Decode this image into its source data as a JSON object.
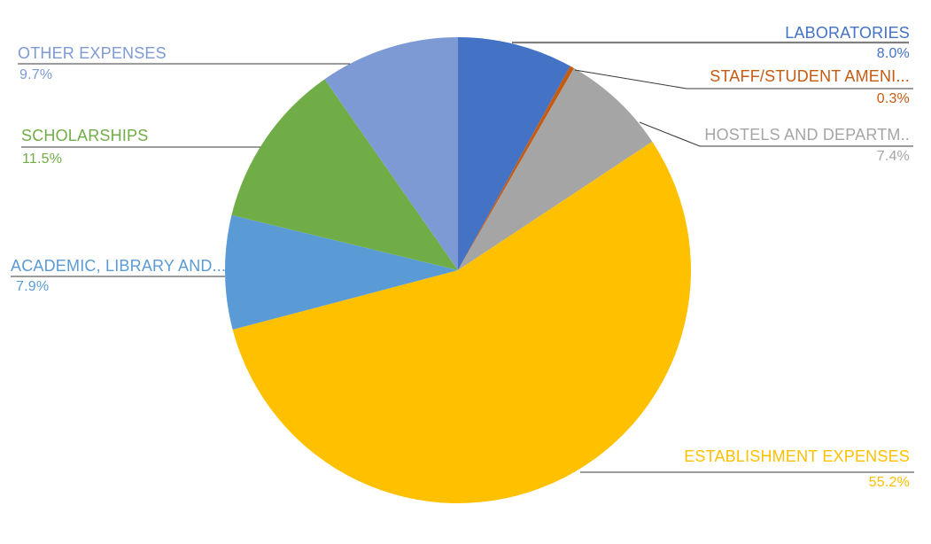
{
  "chart_data": {
    "type": "pie",
    "title": "",
    "unit": "percent",
    "direction": "clockwise",
    "start_angle_deg": 0,
    "legend": "none",
    "label_style": "callout-with-leader-lines",
    "background_color": "#ffffff",
    "slices": [
      {
        "label": "LABORATORIES",
        "value": 8.0,
        "pct_label": "8.0%",
        "color": "#4472C4"
      },
      {
        "label": "STAFF/STUDENT AMENI...",
        "value": 0.3,
        "pct_label": "0.3%",
        "color": "#C55A11"
      },
      {
        "label": "HOSTELS AND DEPARTM..",
        "value": 7.4,
        "pct_label": "7.4%",
        "color": "#A5A5A5"
      },
      {
        "label": "ESTABLISHMENT EXPENSES",
        "value": 55.2,
        "pct_label": "55.2%",
        "color": "#FFC000"
      },
      {
        "label": "ACADEMIC, LIBRARY AND...",
        "value": 7.9,
        "pct_label": "7.9%",
        "color": "#5B9BD5"
      },
      {
        "label": "SCHOLARSHIPS",
        "value": 11.5,
        "pct_label": "11.5%",
        "color": "#70AD47"
      },
      {
        "label": "OTHER EXPENSES",
        "value": 9.7,
        "pct_label": "9.7%",
        "color": "#7D9AD5"
      }
    ]
  }
}
